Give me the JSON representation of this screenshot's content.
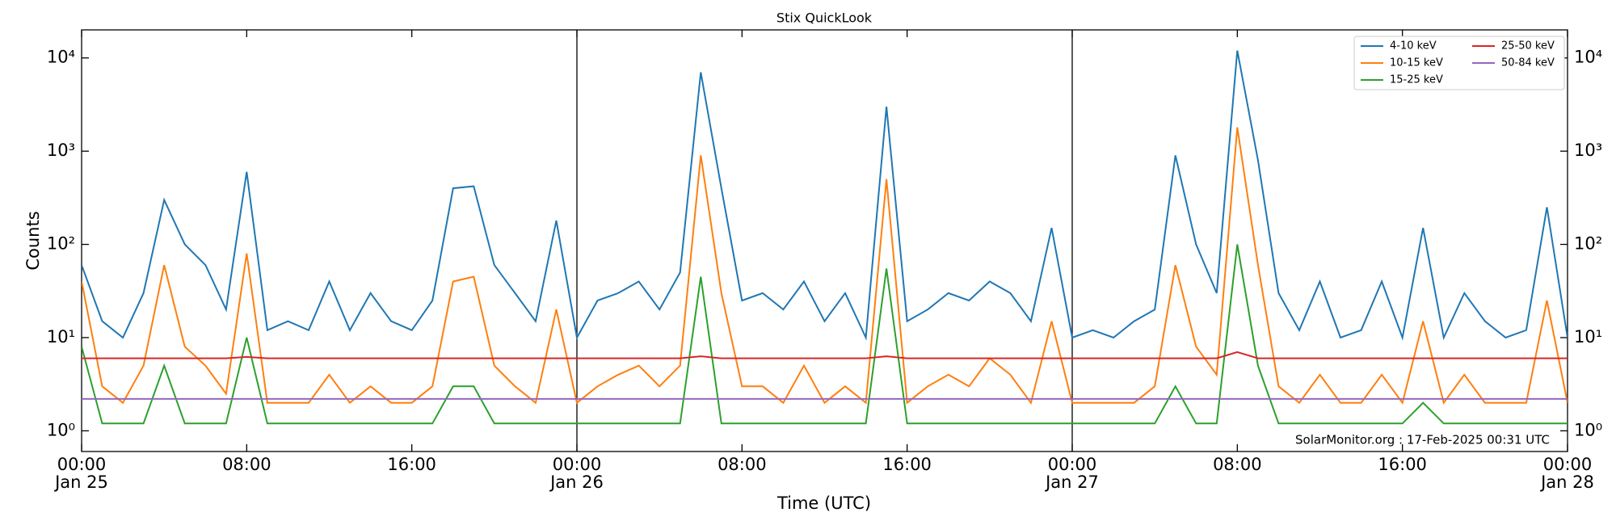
{
  "chart_data": {
    "type": "line",
    "title": "Stix QuickLook",
    "xlabel": "Time (UTC)",
    "ylabel": "Counts",
    "log_y": true,
    "xlim": [
      "Jan 25 00:00",
      "Jan 28 00:00"
    ],
    "xticks": [
      {
        "value": "Jan 25 00:00",
        "label": [
          "00:00",
          "Jan 25"
        ]
      },
      {
        "value": "Jan 25 08:00",
        "label": [
          "08:00"
        ]
      },
      {
        "value": "Jan 25 16:00",
        "label": [
          "16:00"
        ]
      },
      {
        "value": "Jan 26 00:00",
        "label": [
          "00:00",
          "Jan 26"
        ]
      },
      {
        "value": "Jan 26 08:00",
        "label": [
          "08:00"
        ]
      },
      {
        "value": "Jan 26 16:00",
        "label": [
          "16:00"
        ]
      },
      {
        "value": "Jan 27 00:00",
        "label": [
          "00:00",
          "Jan 27"
        ]
      },
      {
        "value": "Jan 27 08:00",
        "label": [
          "08:00"
        ]
      },
      {
        "value": "Jan 27 16:00",
        "label": [
          "16:00"
        ]
      },
      {
        "value": "Jan 28 00:00",
        "label": [
          "00:00",
          "Jan 28"
        ]
      }
    ],
    "vlines": [
      "Jan 26 00:00",
      "Jan 27 00:00"
    ],
    "ylim": [
      0.6,
      20000
    ],
    "yticks": [
      {
        "value": 1,
        "label": "10⁰"
      },
      {
        "value": 10,
        "label": "10¹"
      },
      {
        "value": 100,
        "label": "10²"
      },
      {
        "value": 1000,
        "label": "10³"
      },
      {
        "value": 10000,
        "label": "10⁴"
      }
    ],
    "annotation": "SolarMonitor.org : 17-Feb-2025 00:31 UTC",
    "legend": "upper right",
    "x": [
      "Jan 25 00:00",
      "Jan 25 01:00",
      "Jan 25 02:00",
      "Jan 25 03:00",
      "Jan 25 04:00",
      "Jan 25 05:00",
      "Jan 25 06:00",
      "Jan 25 07:00",
      "Jan 25 08:00",
      "Jan 25 09:00",
      "Jan 25 10:00",
      "Jan 25 11:00",
      "Jan 25 12:00",
      "Jan 25 13:00",
      "Jan 25 14:00",
      "Jan 25 15:00",
      "Jan 25 16:00",
      "Jan 25 17:00",
      "Jan 25 18:00",
      "Jan 25 19:00",
      "Jan 25 20:00",
      "Jan 25 21:00",
      "Jan 25 22:00",
      "Jan 25 23:00",
      "Jan 26 00:00",
      "Jan 26 01:00",
      "Jan 26 02:00",
      "Jan 26 03:00",
      "Jan 26 04:00",
      "Jan 26 05:00",
      "Jan 26 06:00",
      "Jan 26 07:00",
      "Jan 26 08:00",
      "Jan 26 09:00",
      "Jan 26 10:00",
      "Jan 26 11:00",
      "Jan 26 12:00",
      "Jan 26 13:00",
      "Jan 26 14:00",
      "Jan 26 15:00",
      "Jan 26 16:00",
      "Jan 26 17:00",
      "Jan 26 18:00",
      "Jan 26 19:00",
      "Jan 26 20:00",
      "Jan 26 21:00",
      "Jan 26 22:00",
      "Jan 26 23:00",
      "Jan 27 00:00",
      "Jan 27 01:00",
      "Jan 27 02:00",
      "Jan 27 03:00",
      "Jan 27 04:00",
      "Jan 27 05:00",
      "Jan 27 06:00",
      "Jan 27 07:00",
      "Jan 27 08:00",
      "Jan 27 09:00",
      "Jan 27 10:00",
      "Jan 27 11:00",
      "Jan 27 12:00",
      "Jan 27 13:00",
      "Jan 27 14:00",
      "Jan 27 15:00",
      "Jan 27 16:00",
      "Jan 27 17:00",
      "Jan 27 18:00",
      "Jan 27 19:00",
      "Jan 27 20:00",
      "Jan 27 21:00",
      "Jan 27 22:00",
      "Jan 27 23:00",
      "Jan 28 00:00"
    ],
    "series": [
      {
        "name": "4-10 keV",
        "color": "#1f77b4",
        "values": [
          60,
          15,
          10,
          30,
          300,
          100,
          60,
          20,
          600,
          12,
          15,
          12,
          40,
          12,
          30,
          15,
          12,
          25,
          400,
          420,
          60,
          30,
          15,
          180,
          10,
          25,
          30,
          40,
          20,
          50,
          7000,
          400,
          25,
          30,
          20,
          40,
          15,
          30,
          10,
          3000,
          15,
          20,
          30,
          25,
          40,
          30,
          15,
          150,
          10,
          12,
          10,
          15,
          20,
          900,
          100,
          30,
          12000,
          800,
          30,
          12,
          40,
          10,
          12,
          40,
          10,
          150,
          10,
          30,
          15,
          10,
          12,
          250,
          10
        ]
      },
      {
        "name": "10-15 keV",
        "color": "#ff7f0e",
        "values": [
          40,
          3,
          2,
          5,
          60,
          8,
          5,
          2.5,
          80,
          2,
          2,
          2,
          4,
          2,
          3,
          2,
          2,
          3,
          40,
          45,
          5,
          3,
          2,
          20,
          2,
          3,
          4,
          5,
          3,
          5,
          900,
          30,
          3,
          3,
          2,
          5,
          2,
          3,
          2,
          500,
          2,
          3,
          4,
          3,
          6,
          4,
          2,
          15,
          2,
          2,
          2,
          2,
          3,
          60,
          8,
          4,
          1800,
          60,
          3,
          2,
          4,
          2,
          2,
          4,
          2,
          15,
          2,
          4,
          2,
          2,
          2,
          25,
          2
        ]
      },
      {
        "name": "15-25 keV",
        "color": "#2ca02c",
        "values": [
          8,
          1.2,
          1.2,
          1.2,
          5,
          1.2,
          1.2,
          1.2,
          10,
          1.2,
          1.2,
          1.2,
          1.2,
          1.2,
          1.2,
          1.2,
          1.2,
          1.2,
          3,
          3,
          1.2,
          1.2,
          1.2,
          1.2,
          1.2,
          1.2,
          1.2,
          1.2,
          1.2,
          1.2,
          45,
          1.2,
          1.2,
          1.2,
          1.2,
          1.2,
          1.2,
          1.2,
          1.2,
          55,
          1.2,
          1.2,
          1.2,
          1.2,
          1.2,
          1.2,
          1.2,
          1.2,
          1.2,
          1.2,
          1.2,
          1.2,
          1.2,
          3,
          1.2,
          1.2,
          100,
          5,
          1.2,
          1.2,
          1.2,
          1.2,
          1.2,
          1.2,
          1.2,
          2,
          1.2,
          1.2,
          1.2,
          1.2,
          1.2,
          1.2,
          1.2
        ]
      },
      {
        "name": "25-50 keV",
        "color": "#d62728",
        "values": [
          6,
          6,
          6,
          6,
          6,
          6,
          6,
          6,
          6.2,
          6,
          6,
          6,
          6,
          6,
          6,
          6,
          6,
          6,
          6,
          6,
          6,
          6,
          6,
          6,
          6,
          6,
          6,
          6,
          6,
          6,
          6.3,
          6,
          6,
          6,
          6,
          6,
          6,
          6,
          6,
          6.3,
          6,
          6,
          6,
          6,
          6,
          6,
          6,
          6,
          6,
          6,
          6,
          6,
          6,
          6,
          6,
          6,
          7,
          6,
          6,
          6,
          6,
          6,
          6,
          6,
          6,
          6,
          6,
          6,
          6,
          6,
          6,
          6,
          6
        ]
      },
      {
        "name": "50-84 keV",
        "color": "#9467bd",
        "values": [
          2.2,
          2.2,
          2.2,
          2.2,
          2.2,
          2.2,
          2.2,
          2.2,
          2.2,
          2.2,
          2.2,
          2.2,
          2.2,
          2.2,
          2.2,
          2.2,
          2.2,
          2.2,
          2.2,
          2.2,
          2.2,
          2.2,
          2.2,
          2.2,
          2.2,
          2.2,
          2.2,
          2.2,
          2.2,
          2.2,
          2.2,
          2.2,
          2.2,
          2.2,
          2.2,
          2.2,
          2.2,
          2.2,
          2.2,
          2.2,
          2.2,
          2.2,
          2.2,
          2.2,
          2.2,
          2.2,
          2.2,
          2.2,
          2.2,
          2.2,
          2.2,
          2.2,
          2.2,
          2.2,
          2.2,
          2.2,
          2.2,
          2.2,
          2.2,
          2.2,
          2.2,
          2.2,
          2.2,
          2.2,
          2.2,
          2.2,
          2.2,
          2.2,
          2.2,
          2.2,
          2.2,
          2.2,
          2.2
        ]
      }
    ]
  }
}
